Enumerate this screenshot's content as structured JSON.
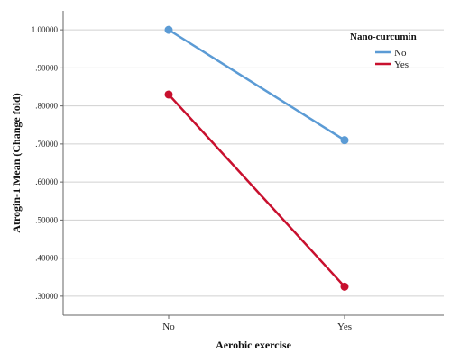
{
  "chart_data": {
    "type": "line",
    "categories": [
      "No",
      "Yes"
    ],
    "xlabel": "Aerobic exercise",
    "ylabel": "Atrogin-1 Mean (Change fold)",
    "ylim": [
      0.25,
      1.05
    ],
    "yticks": [
      ".30000",
      ".40000",
      ".50000",
      ".60000",
      ".70000",
      ".80000",
      ".90000",
      "1.00000"
    ],
    "ytick_values": [
      0.3,
      0.4,
      0.5,
      0.6,
      0.7,
      0.8,
      0.9,
      1.0
    ],
    "grid": true,
    "legend": {
      "title": "Nano-curcumin",
      "placement": "top-right"
    },
    "series": [
      {
        "name": "No",
        "color": "#5B9BD5",
        "values": [
          1.0,
          0.71
        ]
      },
      {
        "name": "Yes",
        "color": "#C8102E",
        "values": [
          0.83,
          0.325
        ]
      }
    ]
  }
}
